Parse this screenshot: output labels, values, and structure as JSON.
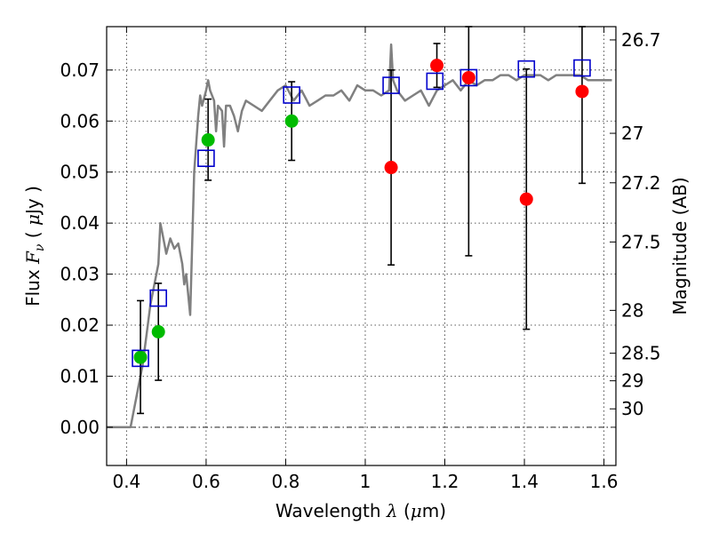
{
  "chart_data": {
    "type": "scatter",
    "xlabel": "Wavelength",
    "xlabel_math": "λ",
    "xlabel_unit_pre": "(",
    "xlabel_unit_mu": "μ",
    "xlabel_unit_post": "m)",
    "ylabel": "Flux",
    "ylabel_math_F": "F",
    "ylabel_math_nu": "ν",
    "ylabel_unit_pre": "(",
    "ylabel_unit_mu": "μ",
    "ylabel_unit_post": "Jy )",
    "y2label": "Magnitude (AB)",
    "xlim": [
      0.35,
      1.63
    ],
    "ylim": [
      -0.0075,
      0.0785
    ],
    "xticks": [
      0.4,
      0.6,
      0.8,
      1.0,
      1.2,
      1.4,
      1.6
    ],
    "xtick_labels": [
      "0.4",
      "0.6",
      "0.8",
      "1",
      "1.2",
      "1.4",
      "1.6"
    ],
    "yticks": [
      0.0,
      0.01,
      0.02,
      0.03,
      0.04,
      0.05,
      0.06,
      0.07
    ],
    "ytick_labels": [
      "0.00",
      "0.01",
      "0.02",
      "0.03",
      "0.04",
      "0.05",
      "0.06",
      "0.07"
    ],
    "y2ticks": [
      {
        "label": "26.7",
        "flux": 0.0759
      },
      {
        "label": "27",
        "flux": 0.0576
      },
      {
        "label": "27.2",
        "flux": 0.0479
      },
      {
        "label": "27.5",
        "flux": 0.0363
      },
      {
        "label": "28",
        "flux": 0.0229
      },
      {
        "label": "28.5",
        "flux": 0.0145
      },
      {
        "label": "29",
        "flux": 0.0091
      },
      {
        "label": "30",
        "flux": 0.0036
      }
    ],
    "grid": true,
    "series": [
      {
        "kind": "line",
        "color": "#808080",
        "x": [
          0.35,
          0.41,
          0.43,
          0.44,
          0.45,
          0.46,
          0.47,
          0.48,
          0.485,
          0.49,
          0.5,
          0.51,
          0.52,
          0.53,
          0.54,
          0.545,
          0.55,
          0.56,
          0.57,
          0.58,
          0.585,
          0.59,
          0.6,
          0.605,
          0.61,
          0.62,
          0.625,
          0.63,
          0.64,
          0.645,
          0.65,
          0.66,
          0.67,
          0.68,
          0.69,
          0.7,
          0.72,
          0.74,
          0.76,
          0.78,
          0.8,
          0.82,
          0.84,
          0.86,
          0.88,
          0.9,
          0.92,
          0.94,
          0.96,
          0.98,
          1.0,
          1.02,
          1.04,
          1.06,
          1.065,
          1.07,
          1.08,
          1.1,
          1.12,
          1.14,
          1.16,
          1.18,
          1.2,
          1.22,
          1.24,
          1.26,
          1.28,
          1.3,
          1.32,
          1.34,
          1.36,
          1.38,
          1.4,
          1.42,
          1.44,
          1.46,
          1.48,
          1.5,
          1.52,
          1.54,
          1.56,
          1.58,
          1.6,
          1.62
        ],
        "y": [
          0.0,
          0.0,
          0.008,
          0.012,
          0.018,
          0.024,
          0.028,
          0.032,
          0.04,
          0.038,
          0.034,
          0.037,
          0.035,
          0.036,
          0.032,
          0.028,
          0.03,
          0.022,
          0.05,
          0.061,
          0.065,
          0.063,
          0.066,
          0.068,
          0.066,
          0.064,
          0.058,
          0.063,
          0.062,
          0.055,
          0.063,
          0.063,
          0.061,
          0.058,
          0.062,
          0.064,
          0.063,
          0.062,
          0.064,
          0.066,
          0.067,
          0.064,
          0.066,
          0.063,
          0.064,
          0.065,
          0.065,
          0.066,
          0.064,
          0.067,
          0.066,
          0.066,
          0.065,
          0.066,
          0.075,
          0.068,
          0.066,
          0.064,
          0.065,
          0.066,
          0.063,
          0.066,
          0.067,
          0.068,
          0.066,
          0.068,
          0.067,
          0.068,
          0.068,
          0.069,
          0.069,
          0.068,
          0.069,
          0.069,
          0.069,
          0.068,
          0.069,
          0.069,
          0.069,
          0.069,
          0.068,
          0.068,
          0.068,
          0.068
        ]
      },
      {
        "kind": "errorbar",
        "color": "#000000",
        "points": [
          {
            "x": 0.435,
            "y": 0.0137,
            "lo": 0.0027,
            "hi": 0.0248
          },
          {
            "x": 0.48,
            "y": 0.0187,
            "lo": 0.0092,
            "hi": 0.0282
          },
          {
            "x": 0.605,
            "y": 0.0563,
            "lo": 0.0484,
            "hi": 0.0643
          },
          {
            "x": 0.815,
            "y": 0.06,
            "lo": 0.0523,
            "hi": 0.0677
          },
          {
            "x": 1.065,
            "y": 0.0509,
            "lo": 0.0318,
            "hi": 0.07
          },
          {
            "x": 1.18,
            "y": 0.0709,
            "lo": 0.0666,
            "hi": 0.0752
          },
          {
            "x": 1.26,
            "y": 0.0685,
            "lo": 0.0336,
            "hi": 0.0785
          },
          {
            "x": 1.405,
            "y": 0.0447,
            "lo": 0.0192,
            "hi": 0.0702
          },
          {
            "x": 1.545,
            "y": 0.0658,
            "lo": 0.0478,
            "hi": 0.0785
          }
        ]
      },
      {
        "kind": "filled-circles",
        "color": "#00bb00",
        "points": [
          {
            "x": 0.435,
            "y": 0.0137
          },
          {
            "x": 0.48,
            "y": 0.0187
          },
          {
            "x": 0.605,
            "y": 0.0563
          },
          {
            "x": 0.815,
            "y": 0.06
          }
        ]
      },
      {
        "kind": "filled-circles",
        "color": "#ff0000",
        "points": [
          {
            "x": 1.065,
            "y": 0.0509
          },
          {
            "x": 1.18,
            "y": 0.0709
          },
          {
            "x": 1.26,
            "y": 0.0685
          },
          {
            "x": 1.405,
            "y": 0.0447
          },
          {
            "x": 1.545,
            "y": 0.0658
          }
        ]
      },
      {
        "kind": "open-squares",
        "color": "#0000cc",
        "points": [
          {
            "x": 0.435,
            "y": 0.0135
          },
          {
            "x": 0.48,
            "y": 0.0253
          },
          {
            "x": 0.6,
            "y": 0.0527
          },
          {
            "x": 0.815,
            "y": 0.0651
          },
          {
            "x": 1.065,
            "y": 0.067
          },
          {
            "x": 1.175,
            "y": 0.0678
          },
          {
            "x": 1.26,
            "y": 0.0685
          },
          {
            "x": 1.405,
            "y": 0.0702
          },
          {
            "x": 1.545,
            "y": 0.0704
          }
        ]
      }
    ],
    "zero_line": true
  }
}
